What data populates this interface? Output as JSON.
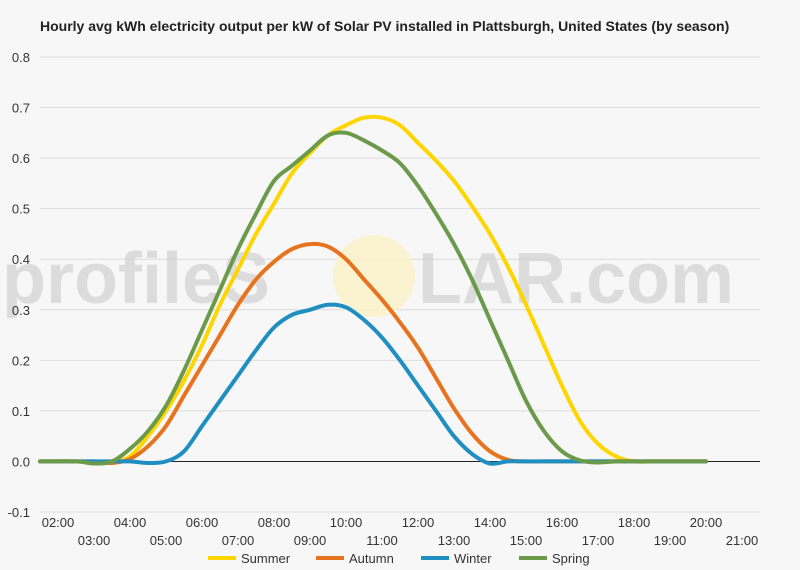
{
  "watermark": {
    "left": "profileS",
    "right": "LAR.com"
  },
  "chart_data": {
    "type": "line",
    "title": "Hourly avg kWh electricity output per kW of Solar PV installed in Plattsburgh, United States (by season)",
    "xlabel": "",
    "ylabel": "",
    "x": [
      "02:00",
      "03:00",
      "04:00",
      "05:00",
      "06:00",
      "07:00",
      "08:00",
      "09:00",
      "10:00",
      "11:00",
      "12:00",
      "13:00",
      "14:00",
      "15:00",
      "16:00",
      "17:00",
      "18:00",
      "19:00",
      "20:00",
      "21:00"
    ],
    "x_hours": [
      2,
      3,
      4,
      5,
      6,
      7,
      8,
      9,
      10,
      11,
      12,
      13,
      14,
      15,
      16,
      17,
      18,
      19,
      20,
      21
    ],
    "ylim": [
      -0.1,
      0.8
    ],
    "yticks": [
      "-0.1",
      "0.0",
      "0.1",
      "0.2",
      "0.3",
      "0.4",
      "0.5",
      "0.6",
      "0.7",
      "0.8"
    ],
    "ytick_values": [
      -0.1,
      0,
      0.1,
      0.2,
      0.3,
      0.4,
      0.5,
      0.6,
      0.7,
      0.8
    ],
    "grid": true,
    "legend_position": "bottom",
    "series": [
      {
        "name": "Summer",
        "color": "#ffd500",
        "points": [
          [
            1.5,
            0
          ],
          [
            2.5,
            0
          ],
          [
            3.5,
            0
          ],
          [
            4,
            0.01
          ],
          [
            4.5,
            0.05
          ],
          [
            5,
            0.1
          ],
          [
            5.5,
            0.16
          ],
          [
            6,
            0.23
          ],
          [
            6.5,
            0.31
          ],
          [
            7,
            0.38
          ],
          [
            7.5,
            0.45
          ],
          [
            8,
            0.51
          ],
          [
            8.5,
            0.57
          ],
          [
            9,
            0.61
          ],
          [
            9.5,
            0.645
          ],
          [
            10,
            0.665
          ],
          [
            10.5,
            0.68
          ],
          [
            11,
            0.68
          ],
          [
            11.5,
            0.665
          ],
          [
            12,
            0.63
          ],
          [
            12.5,
            0.595
          ],
          [
            13,
            0.555
          ],
          [
            13.5,
            0.505
          ],
          [
            14,
            0.45
          ],
          [
            14.5,
            0.385
          ],
          [
            15,
            0.31
          ],
          [
            15.5,
            0.23
          ],
          [
            16,
            0.15
          ],
          [
            16.5,
            0.08
          ],
          [
            17,
            0.035
          ],
          [
            17.5,
            0.01
          ],
          [
            18,
            0
          ],
          [
            18.5,
            0
          ],
          [
            19,
            0
          ],
          [
            20,
            0
          ]
        ]
      },
      {
        "name": "Autumn",
        "color": "#e8731e",
        "points": [
          [
            1.5,
            0
          ],
          [
            2.5,
            0
          ],
          [
            3,
            0
          ],
          [
            3.5,
            -0.003
          ],
          [
            4,
            0.005
          ],
          [
            4.5,
            0.03
          ],
          [
            5,
            0.07
          ],
          [
            5.5,
            0.13
          ],
          [
            6,
            0.19
          ],
          [
            6.5,
            0.25
          ],
          [
            7,
            0.31
          ],
          [
            7.5,
            0.36
          ],
          [
            8,
            0.395
          ],
          [
            8.5,
            0.42
          ],
          [
            9,
            0.43
          ],
          [
            9.5,
            0.425
          ],
          [
            10,
            0.4
          ],
          [
            10.5,
            0.36
          ],
          [
            11,
            0.32
          ],
          [
            11.5,
            0.275
          ],
          [
            12,
            0.225
          ],
          [
            12.5,
            0.165
          ],
          [
            13,
            0.105
          ],
          [
            13.5,
            0.055
          ],
          [
            14,
            0.02
          ],
          [
            14.5,
            0.003
          ],
          [
            15,
            0
          ],
          [
            15.5,
            0
          ],
          [
            16,
            0
          ],
          [
            17,
            0
          ],
          [
            18,
            0
          ],
          [
            19,
            0
          ],
          [
            20,
            0
          ]
        ]
      },
      {
        "name": "Winter",
        "color": "#1f8ec1",
        "points": [
          [
            1.5,
            0
          ],
          [
            2.5,
            0
          ],
          [
            3.5,
            0
          ],
          [
            4,
            0
          ],
          [
            4.5,
            -0.003
          ],
          [
            5,
            0
          ],
          [
            5.5,
            0.02
          ],
          [
            6,
            0.07
          ],
          [
            6.5,
            0.12
          ],
          [
            7,
            0.17
          ],
          [
            7.5,
            0.22
          ],
          [
            8,
            0.265
          ],
          [
            8.5,
            0.29
          ],
          [
            9,
            0.3
          ],
          [
            9.5,
            0.31
          ],
          [
            10,
            0.305
          ],
          [
            10.5,
            0.28
          ],
          [
            11,
            0.245
          ],
          [
            11.5,
            0.2
          ],
          [
            12,
            0.15
          ],
          [
            12.5,
            0.1
          ],
          [
            13,
            0.05
          ],
          [
            13.5,
            0.015
          ],
          [
            14,
            -0.004
          ],
          [
            14.5,
            0
          ],
          [
            15,
            0
          ],
          [
            15.5,
            0
          ],
          [
            16,
            0
          ],
          [
            17,
            0
          ],
          [
            18,
            0
          ],
          [
            19,
            0
          ],
          [
            20,
            0
          ]
        ]
      },
      {
        "name": "Spring",
        "color": "#6b9a4a",
        "points": [
          [
            1.5,
            0
          ],
          [
            2.5,
            0
          ],
          [
            3,
            -0.004
          ],
          [
            3.5,
            0
          ],
          [
            4,
            0.025
          ],
          [
            4.5,
            0.06
          ],
          [
            5,
            0.11
          ],
          [
            5.5,
            0.18
          ],
          [
            6,
            0.26
          ],
          [
            6.5,
            0.34
          ],
          [
            7,
            0.42
          ],
          [
            7.5,
            0.49
          ],
          [
            8,
            0.555
          ],
          [
            8.5,
            0.585
          ],
          [
            9,
            0.615
          ],
          [
            9.5,
            0.645
          ],
          [
            10,
            0.65
          ],
          [
            10.5,
            0.635
          ],
          [
            11,
            0.615
          ],
          [
            11.5,
            0.59
          ],
          [
            12,
            0.545
          ],
          [
            12.5,
            0.49
          ],
          [
            13,
            0.43
          ],
          [
            13.5,
            0.36
          ],
          [
            14,
            0.28
          ],
          [
            14.5,
            0.2
          ],
          [
            15,
            0.12
          ],
          [
            15.5,
            0.06
          ],
          [
            16,
            0.02
          ],
          [
            16.5,
            0.002
          ],
          [
            17,
            -0.002
          ],
          [
            17.5,
            0
          ],
          [
            18,
            0
          ],
          [
            19,
            0
          ],
          [
            20,
            0
          ]
        ]
      }
    ]
  }
}
